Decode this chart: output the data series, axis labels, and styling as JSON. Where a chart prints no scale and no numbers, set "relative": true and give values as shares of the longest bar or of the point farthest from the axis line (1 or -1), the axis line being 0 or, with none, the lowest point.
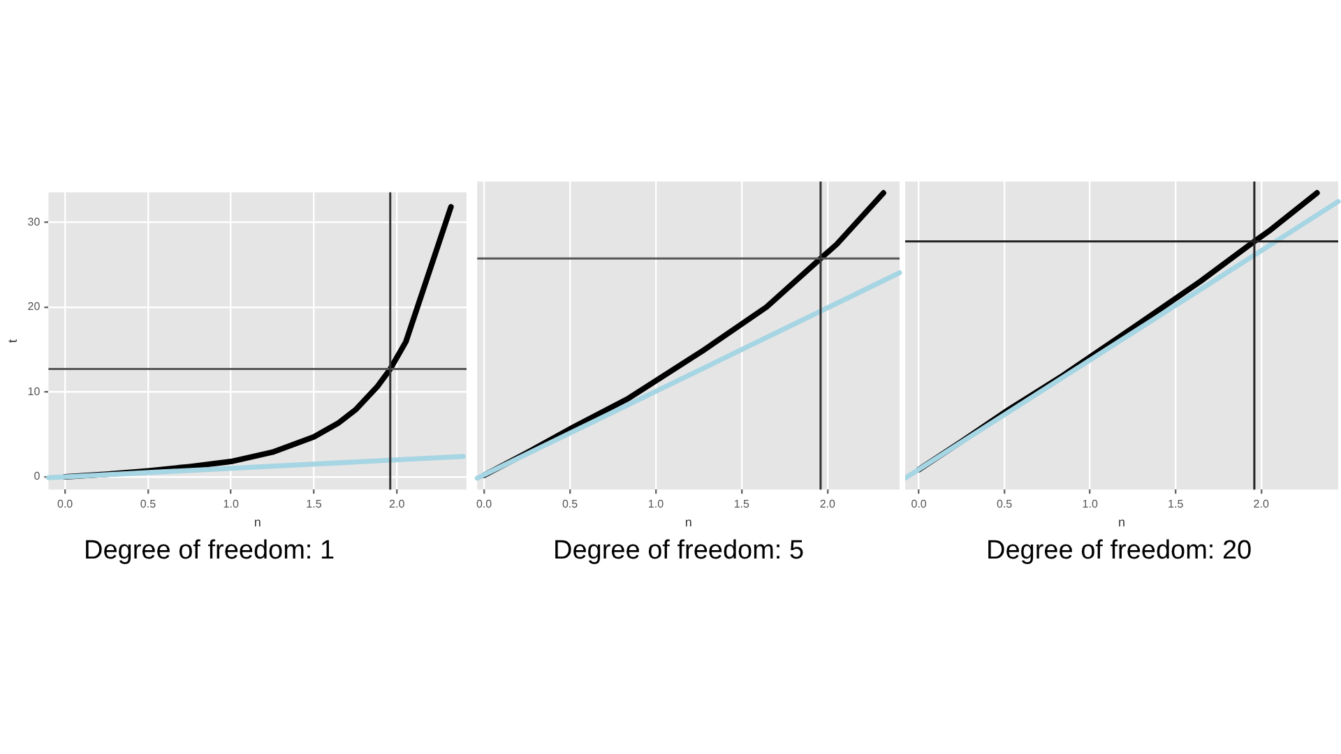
{
  "chart_data": [
    {
      "type": "line",
      "xlabel": "n",
      "ylabel": "t",
      "annotations": [
        "Degree of freedom: 1"
      ],
      "xlim": [
        -0.1,
        2.42
      ],
      "ylim": [
        -1.5,
        33.5
      ],
      "xticks": [
        {
          "value": 0,
          "label": "0.0"
        },
        {
          "value": 0.5,
          "label": "0.5"
        },
        {
          "value": 1,
          "label": "1.0"
        },
        {
          "value": 1.5,
          "label": "1.5"
        },
        {
          "value": 2,
          "label": "2.0"
        }
      ],
      "yticks": [
        0,
        10,
        20,
        30
      ],
      "grid": true,
      "legend": false,
      "marker": "none",
      "line_style": "solid",
      "series": [
        {
          "color": "#a6d5e3",
          "x": [
            -0.1,
            2.4
          ],
          "values": [
            -0.1,
            2.4
          ]
        },
        {
          "color": "#000000",
          "x": [
            0,
            0.25,
            0.5,
            0.75,
            1.0,
            1.25,
            1.5,
            1.645,
            1.751,
            1.881,
            1.96,
            2.054,
            2.326
          ],
          "values": [
            0,
            0.3,
            0.7,
            1.2,
            1.8,
            2.9,
            4.7,
            6.3,
            7.9,
            10.6,
            12.7,
            15.9,
            31.8
          ]
        }
      ],
      "ref_lines": [
        {
          "axis": "y",
          "value": 12.7,
          "color": "#555555"
        },
        {
          "axis": "x",
          "value": 1.96,
          "color": "#333333"
        }
      ]
    },
    {
      "type": "line",
      "xlabel": "n",
      "annotations": [
        "Degree of freedom: 5"
      ],
      "relative": true,
      "tick_labels": "x",
      "xlim": [
        -0.04,
        2.42
      ],
      "xticks": [
        {
          "value": 0,
          "label": "0.0"
        },
        {
          "value": 0.5,
          "label": "0.5"
        },
        {
          "value": 1,
          "label": "1.0"
        },
        {
          "value": 1.5,
          "label": "1.5"
        },
        {
          "value": 2,
          "label": "2.0"
        }
      ],
      "grid": true,
      "legend": false,
      "marker": "none",
      "line_style": "solid",
      "series": [
        {
          "color": "#a6d5e3",
          "x": [
            -0.04,
            2.42
          ],
          "values": [
            0,
            0.72
          ]
        },
        {
          "color": "#000000",
          "x": [
            0,
            0.253,
            0.524,
            0.842,
            1.282,
            1.645,
            1.96,
            2.054,
            2.326
          ],
          "values": [
            0.01,
            0.09,
            0.18,
            0.28,
            0.45,
            0.6,
            0.77,
            0.82,
            1
          ]
        }
      ],
      "ref_lines": [
        {
          "axis": "y",
          "value": 0.77,
          "color": "#555555"
        },
        {
          "axis": "x",
          "value": 1.96,
          "color": "#333333"
        }
      ]
    },
    {
      "type": "line",
      "xlabel": "n",
      "annotations": [
        "Degree of freedom: 20"
      ],
      "relative": true,
      "tick_labels": "x",
      "xlim": [
        -0.08,
        2.45
      ],
      "xticks": [
        {
          "value": 0,
          "label": "0.0"
        },
        {
          "value": 0.5,
          "label": "0.5"
        },
        {
          "value": 1,
          "label": "1.0"
        },
        {
          "value": 1.5,
          "label": "1.5"
        },
        {
          "value": 2,
          "label": "2.0"
        }
      ],
      "grid": true,
      "legend": false,
      "marker": "none",
      "line_style": "solid",
      "series": [
        {
          "color": "#a6d5e3",
          "x": [
            -0.08,
            2.45
          ],
          "values": [
            0,
            0.97
          ]
        },
        {
          "color": "#000000",
          "x": [
            0,
            0.253,
            0.524,
            0.842,
            1.282,
            1.645,
            1.96,
            2.054,
            2.326
          ],
          "values": [
            0.03,
            0.13,
            0.24,
            0.36,
            0.54,
            0.69,
            0.83,
            0.87,
            1
          ]
        }
      ],
      "ref_lines": [
        {
          "axis": "y",
          "value": 0.83,
          "color": "#222222"
        },
        {
          "axis": "x",
          "value": 1.96,
          "color": "#222222"
        }
      ]
    }
  ]
}
